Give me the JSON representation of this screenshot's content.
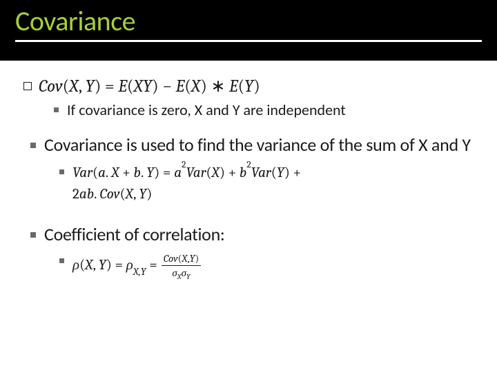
{
  "title": {
    "text": "Covariance",
    "color": "#a8cf3a",
    "underline_color": "#ffffff",
    "background": "#000000",
    "fontsize": 40
  },
  "items": {
    "eq_cov_def": "𝐶𝑜𝑣(𝑋, 𝑌) = 𝐸(𝑋𝑌) − 𝐸(𝑋) ∗ 𝐸(𝑌)",
    "cov_zero_text": "If covariance is zero, X and Y are independent",
    "cov_usage_text": "Covariance is used to find the variance of the sum of X and Y",
    "eq_var_sum_line1": "𝑉𝑎𝑟(𝑎.𝑋 + 𝑏.𝑌) = 𝑎²𝑉𝑎𝑟(𝑋) + 𝑏²𝑉𝑎𝑟(𝑌) +",
    "eq_var_sum_line2": "2𝑎𝑏.𝐶𝑜𝑣(𝑋, 𝑌)",
    "corr_label": "Coefficient of correlation:",
    "eq_rho_left": "𝜌(𝑋, 𝑌) = 𝜌𝑋,𝑌 =",
    "eq_rho_frac_num": "𝐶𝑜𝑣(𝑋,𝑌)",
    "eq_rho_frac_den": "𝜎𝑋𝜎𝑌"
  },
  "styling": {
    "body_text_color": "#1a1a1a",
    "bullet_color": "#6a6a6a",
    "main_fontsize": 26,
    "sub_fontsize": 22,
    "eq_fontsize": 21,
    "frac_fontsize": 15,
    "slide_width": 720,
    "slide_height": 540,
    "title_band_height": 88,
    "background": "#ffffff"
  }
}
